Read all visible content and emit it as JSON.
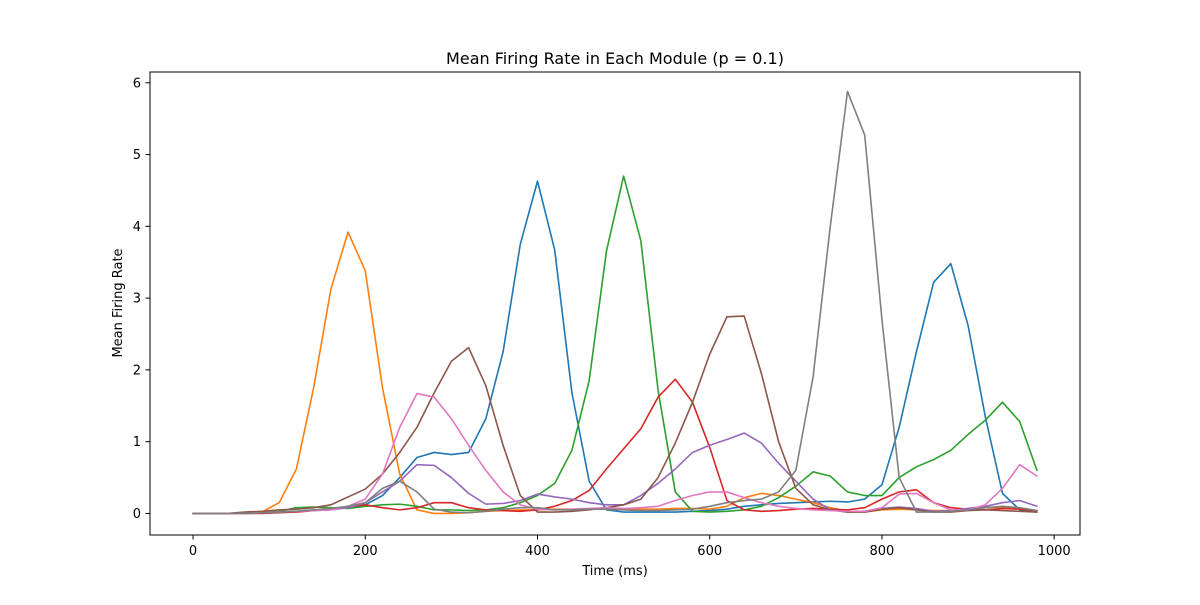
{
  "chart_data": {
    "type": "line",
    "title": "Mean Firing Rate in Each Module (p = 0.1)",
    "xlabel": "Time (ms)",
    "ylabel": "Mean Firing Rate",
    "xlim": [
      -50,
      1030
    ],
    "ylim": [
      -0.3,
      6.15
    ],
    "xticks": [
      0,
      200,
      400,
      600,
      800,
      1000
    ],
    "yticks": [
      0,
      1,
      2,
      3,
      4,
      5,
      6
    ],
    "grid": false,
    "legend": "none",
    "x": [
      0,
      20,
      40,
      60,
      80,
      100,
      120,
      140,
      160,
      180,
      200,
      220,
      240,
      260,
      280,
      300,
      320,
      340,
      360,
      380,
      400,
      420,
      440,
      460,
      480,
      500,
      520,
      540,
      560,
      580,
      600,
      620,
      640,
      660,
      680,
      700,
      720,
      740,
      760,
      780,
      800,
      820,
      840,
      860,
      880,
      900,
      920,
      940,
      960,
      980
    ],
    "series": [
      {
        "color": "#1f77b4",
        "values": [
          0,
          0,
          0,
          0.01,
          0.01,
          0.02,
          0.03,
          0.05,
          0.06,
          0.08,
          0.12,
          0.25,
          0.5,
          0.78,
          0.85,
          0.82,
          0.85,
          1.32,
          2.25,
          3.75,
          4.63,
          3.67,
          1.68,
          0.45,
          0.05,
          0.02,
          0.02,
          0.02,
          0.02,
          0.03,
          0.04,
          0.06,
          0.1,
          0.12,
          0.14,
          0.15,
          0.16,
          0.17,
          0.16,
          0.2,
          0.4,
          1.2,
          2.25,
          3.22,
          3.48,
          2.62,
          1.35,
          0.28,
          0.05,
          0.02
        ]
      },
      {
        "color": "#ff7f0e",
        "values": [
          0,
          0,
          0,
          0.01,
          0.02,
          0.15,
          0.62,
          1.75,
          3.12,
          3.92,
          3.38,
          1.75,
          0.55,
          0.05,
          0,
          0,
          0.01,
          0.03,
          0.04,
          0.05,
          0.05,
          0.06,
          0.06,
          0.06,
          0.06,
          0.05,
          0.06,
          0.06,
          0.07,
          0.07,
          0.06,
          0.1,
          0.22,
          0.28,
          0.25,
          0.2,
          0.15,
          0.08,
          0.03,
          0.02,
          0.05,
          0.06,
          0.05,
          0.04,
          0.04,
          0.06,
          0.08,
          0.09,
          0.07,
          0.04
        ]
      },
      {
        "color": "#2ca02c",
        "values": [
          0,
          0,
          0,
          0,
          0.01,
          0.03,
          0.08,
          0.09,
          0.08,
          0.07,
          0.1,
          0.12,
          0.13,
          0.1,
          0.05,
          0.05,
          0.04,
          0.05,
          0.08,
          0.15,
          0.25,
          0.42,
          0.88,
          1.85,
          3.65,
          4.7,
          3.8,
          1.72,
          0.3,
          0.03,
          0.02,
          0.03,
          0.05,
          0.1,
          0.22,
          0.38,
          0.58,
          0.52,
          0.3,
          0.25,
          0.25,
          0.5,
          0.65,
          0.75,
          0.88,
          1.1,
          1.3,
          1.55,
          1.28,
          0.6
        ]
      },
      {
        "color": "#d62728",
        "values": [
          0,
          0,
          0,
          0,
          0,
          0.01,
          0.02,
          0.04,
          0.06,
          0.09,
          0.12,
          0.08,
          0.05,
          0.08,
          0.15,
          0.15,
          0.08,
          0.05,
          0.04,
          0.03,
          0.05,
          0.1,
          0.18,
          0.32,
          0.62,
          0.9,
          1.18,
          1.62,
          1.87,
          1.55,
          0.92,
          0.18,
          0.05,
          0.03,
          0.04,
          0.06,
          0.07,
          0.06,
          0.05,
          0.08,
          0.2,
          0.3,
          0.33,
          0.15,
          0.08,
          0.06,
          0.05,
          0.07,
          0.06,
          0.04
        ]
      },
      {
        "color": "#9467bd",
        "values": [
          0,
          0,
          0,
          0,
          0.01,
          0.02,
          0.03,
          0.04,
          0.05,
          0.08,
          0.15,
          0.3,
          0.45,
          0.68,
          0.67,
          0.5,
          0.28,
          0.13,
          0.14,
          0.18,
          0.27,
          0.23,
          0.2,
          0.15,
          0.12,
          0.12,
          0.25,
          0.42,
          0.62,
          0.85,
          0.95,
          1.03,
          1.12,
          0.98,
          0.7,
          0.45,
          0.2,
          0.05,
          0.02,
          0.03,
          0.07,
          0.09,
          0.07,
          0.03,
          0.04,
          0.07,
          0.1,
          0.15,
          0.18,
          0.1
        ]
      },
      {
        "color": "#8c564b",
        "values": [
          0,
          0,
          0,
          0.02,
          0.03,
          0.05,
          0.06,
          0.08,
          0.12,
          0.23,
          0.34,
          0.55,
          0.85,
          1.2,
          1.68,
          2.12,
          2.31,
          1.78,
          0.95,
          0.25,
          0.02,
          0.02,
          0.03,
          0.05,
          0.08,
          0.12,
          0.2,
          0.5,
          0.98,
          1.55,
          2.22,
          2.74,
          2.75,
          1.95,
          1.0,
          0.35,
          0.12,
          0.05,
          0.02,
          0.02,
          0.06,
          0.08,
          0.05,
          0.02,
          0.02,
          0.04,
          0.05,
          0.04,
          0.03,
          0.02
        ]
      },
      {
        "color": "#e377c2",
        "values": [
          0,
          0,
          0,
          0,
          0.01,
          0.02,
          0.03,
          0.04,
          0.05,
          0.1,
          0.2,
          0.55,
          1.2,
          1.67,
          1.62,
          1.32,
          0.95,
          0.6,
          0.3,
          0.12,
          0.06,
          0.05,
          0.06,
          0.07,
          0.08,
          0.07,
          0.08,
          0.1,
          0.18,
          0.25,
          0.3,
          0.3,
          0.22,
          0.15,
          0.1,
          0.07,
          0.05,
          0.04,
          0.03,
          0.03,
          0.08,
          0.27,
          0.28,
          0.15,
          0.05,
          0.05,
          0.12,
          0.35,
          0.68,
          0.52
        ]
      },
      {
        "color": "#7f7f7f",
        "values": [
          0,
          0,
          0,
          0,
          0.01,
          0.02,
          0.03,
          0.05,
          0.07,
          0.1,
          0.15,
          0.35,
          0.45,
          0.3,
          0.06,
          0.02,
          0.01,
          0.03,
          0.06,
          0.08,
          0.08,
          0.05,
          0.05,
          0.06,
          0.06,
          0.05,
          0.04,
          0.04,
          0.05,
          0.06,
          0.1,
          0.15,
          0.18,
          0.2,
          0.3,
          0.6,
          1.9,
          4.0,
          5.88,
          5.27,
          2.7,
          0.5,
          0.02,
          0.02,
          0.03,
          0.05,
          0.08,
          0.1,
          0.08,
          0.04
        ]
      }
    ]
  }
}
